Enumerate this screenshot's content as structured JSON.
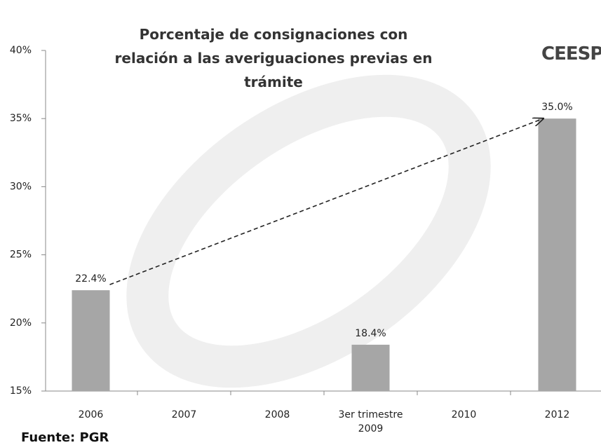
{
  "chart_data": {
    "type": "bar",
    "title": "Porcentaje de consignaciones con relación a las averiguaciones previas en trámite",
    "logo": "CEESP",
    "source": "Fuente: PGR",
    "categories": [
      "2006",
      "2007",
      "2008",
      "3er trimestre\n2009",
      "2010",
      "2012"
    ],
    "values": [
      22.4,
      null,
      null,
      18.4,
      null,
      35.0
    ],
    "value_labels": [
      "22.4%",
      null,
      null,
      "18.4%",
      null,
      "35.0%"
    ],
    "color": "#a6a6a6",
    "ylim": [
      15,
      40
    ],
    "yticks": [
      {
        "value": 15,
        "label": "15%"
      },
      {
        "value": 20,
        "label": "20%"
      },
      {
        "value": 25,
        "label": "25%"
      },
      {
        "value": 30,
        "label": "30%"
      },
      {
        "value": 35,
        "label": "35%"
      },
      {
        "value": 40,
        "label": "40%"
      }
    ],
    "grid": false
  }
}
